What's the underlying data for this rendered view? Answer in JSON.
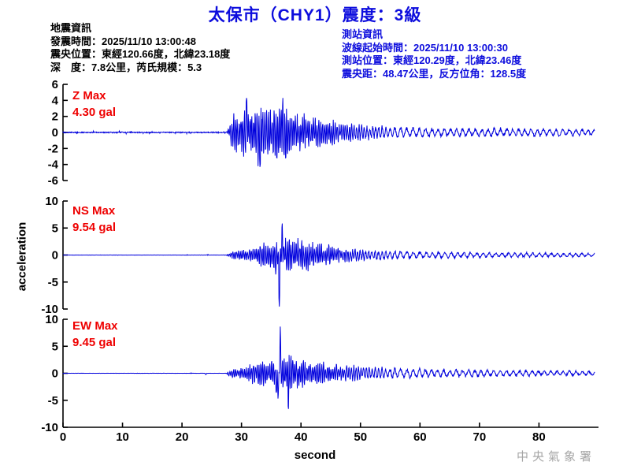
{
  "title": "太保市（CHY1）震度：3級",
  "earthquake_info": {
    "lines": [
      "地震資訊",
      "發震時間：2025/11/10 13:00:48",
      "震央位置：東經120.66度，北緯23.18度",
      "深　度：7.8公里，芮氏規模：5.3"
    ]
  },
  "station_info": {
    "lines": [
      "測站資訊",
      "波線起始時間：2025/11/10 13:00:30",
      "測站位置：東經120.29度，北緯23.46度",
      "震央距：48.47公里，反方位角：128.5度"
    ]
  },
  "watermark": "中央氣象署",
  "chart_data": {
    "type": "line",
    "subtype": "seismogram",
    "title": "太保市（CHY1）震度：3級",
    "xlabel": "second",
    "ylabel": "acceleration",
    "units": "gal",
    "xlim": [
      0,
      90
    ],
    "x_ticks": [
      0,
      10,
      20,
      30,
      40,
      50,
      60,
      70,
      80
    ],
    "grid": false,
    "axis_color": "#000000",
    "trace_color": "#0000dd",
    "label_color": "#ee0000",
    "traces": [
      {
        "id": "z",
        "component": "Z",
        "max_label": "Z Max",
        "max_value": "4.30 gal",
        "max_gal": 4.3,
        "ylim": [
          -6,
          6
        ],
        "yticks": [
          6,
          4,
          2,
          0,
          -2,
          -4,
          -6
        ],
        "onset": 27.5,
        "noise_floor": 0.06,
        "blips": [],
        "spikes": [
          [
            30.9,
            4.0
          ],
          [
            33.15,
            -4.1
          ],
          [
            36.9,
            3.9
          ]
        ],
        "envelope": [
          [
            0,
            0.05
          ],
          [
            27.4,
            0.05
          ],
          [
            27.8,
            0.45
          ],
          [
            28.3,
            1.7
          ],
          [
            29,
            2.5
          ],
          [
            30,
            3.4
          ],
          [
            31,
            2.8
          ],
          [
            32,
            3.3
          ],
          [
            33,
            4.2
          ],
          [
            34,
            3.2
          ],
          [
            35,
            2.9
          ],
          [
            36,
            3.6
          ],
          [
            37,
            4.1
          ],
          [
            38,
            2.9
          ],
          [
            39,
            2.3
          ],
          [
            40,
            2.6
          ],
          [
            41,
            2.1
          ],
          [
            42,
            1.9
          ],
          [
            43,
            2.1
          ],
          [
            44,
            1.7
          ],
          [
            45,
            1.5
          ],
          [
            47,
            1.25
          ],
          [
            49,
            1.1
          ],
          [
            51,
            0.95
          ],
          [
            54,
            0.8
          ],
          [
            57,
            0.68
          ],
          [
            60,
            0.6
          ],
          [
            64,
            0.55
          ],
          [
            68,
            0.6
          ],
          [
            72,
            0.52
          ],
          [
            76,
            0.55
          ],
          [
            80,
            0.5
          ],
          [
            84,
            0.45
          ],
          [
            89.5,
            0.4
          ]
        ]
      },
      {
        "id": "ns",
        "component": "NS",
        "max_label": "NS Max",
        "max_value": "9.54 gal",
        "max_gal": 9.54,
        "ylim": [
          -10,
          10
        ],
        "yticks": [
          10,
          5,
          0,
          -5,
          -10
        ],
        "onset": 27.5,
        "noise_floor": 0.012,
        "blips": [
          [
            20.9,
            0.18
          ],
          [
            24.3,
            0.25
          ]
        ],
        "spikes": [
          [
            36.35,
            -8.8
          ],
          [
            36.85,
            4.6
          ],
          [
            35.75,
            -2.6
          ]
        ],
        "envelope": [
          [
            0,
            0.012
          ],
          [
            27.4,
            0.012
          ],
          [
            27.8,
            0.35
          ],
          [
            28.5,
            0.7
          ],
          [
            29.5,
            0.85
          ],
          [
            31,
            1.0
          ],
          [
            32.5,
            1.6
          ],
          [
            33.5,
            2.6
          ],
          [
            34.5,
            2.2
          ],
          [
            35.5,
            2.4
          ],
          [
            36.5,
            3.1
          ],
          [
            37.5,
            3.0
          ],
          [
            38.5,
            3.3
          ],
          [
            39.5,
            2.7
          ],
          [
            40.5,
            3.0
          ],
          [
            41.5,
            2.5
          ],
          [
            42.5,
            2.2
          ],
          [
            43.5,
            2.0
          ],
          [
            45,
            1.7
          ],
          [
            46.5,
            1.45
          ],
          [
            48,
            1.3
          ],
          [
            50,
            1.15
          ],
          [
            52,
            1.0
          ],
          [
            54,
            0.9
          ],
          [
            57,
            0.8
          ],
          [
            60,
            0.7
          ],
          [
            64,
            0.6
          ],
          [
            68,
            0.55
          ],
          [
            72,
            0.5
          ],
          [
            76,
            0.45
          ],
          [
            80,
            0.45
          ],
          [
            84,
            0.4
          ],
          [
            89.5,
            0.35
          ]
        ]
      },
      {
        "id": "ew",
        "component": "EW",
        "max_label": "EW Max",
        "max_value": "9.45 gal",
        "max_gal": 9.45,
        "ylim": [
          -10,
          10
        ],
        "yticks": [
          10,
          5,
          0,
          -5,
          -10
        ],
        "onset": 27.5,
        "noise_floor": 0.012,
        "blips": [
          [
            24.0,
            0.3
          ],
          [
            21.5,
            0.12
          ]
        ],
        "spikes": [
          [
            36.5,
            8.6
          ],
          [
            36.22,
            -4.4
          ],
          [
            37.9,
            -4.0
          ],
          [
            35.9,
            -3.4
          ]
        ],
        "envelope": [
          [
            0,
            0.012
          ],
          [
            27.4,
            0.012
          ],
          [
            27.8,
            0.4
          ],
          [
            28.5,
            0.8
          ],
          [
            29.5,
            1.0
          ],
          [
            31,
            1.3
          ],
          [
            32,
            1.9
          ],
          [
            33,
            2.6
          ],
          [
            34,
            3.1
          ],
          [
            35,
            2.7
          ],
          [
            36,
            3.1
          ],
          [
            37,
            3.5
          ],
          [
            38,
            3.9
          ],
          [
            39,
            3.3
          ],
          [
            40,
            2.9
          ],
          [
            41,
            2.5
          ],
          [
            42,
            2.3
          ],
          [
            43,
            2.1
          ],
          [
            44,
            1.9
          ],
          [
            45,
            1.7
          ],
          [
            47,
            1.5
          ],
          [
            49,
            1.35
          ],
          [
            51,
            1.25
          ],
          [
            53,
            1.1
          ],
          [
            55,
            1.0
          ],
          [
            58,
            0.95
          ],
          [
            61,
            0.85
          ],
          [
            64,
            0.8
          ],
          [
            68,
            0.75
          ],
          [
            72,
            0.65
          ],
          [
            76,
            0.6
          ],
          [
            80,
            0.55
          ],
          [
            84,
            0.5
          ],
          [
            89.5,
            0.45
          ]
        ]
      }
    ]
  }
}
